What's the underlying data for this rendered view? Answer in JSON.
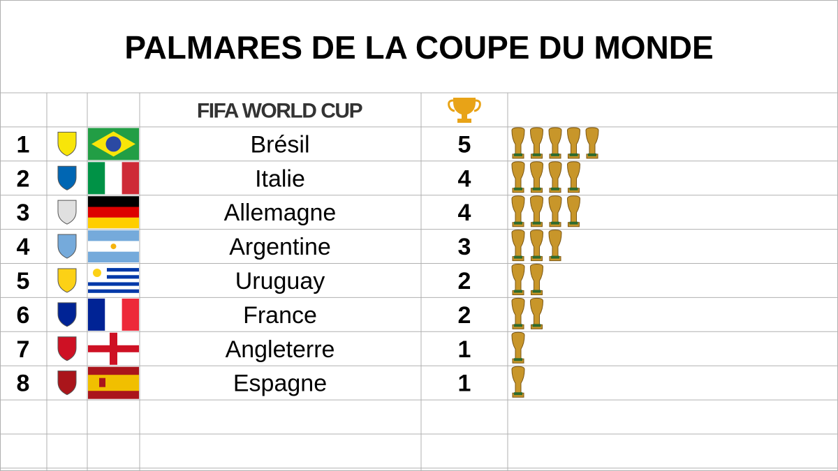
{
  "title": "PALMARES DE LA COUPE DU MONDE",
  "header": {
    "logo": "FIFA WORLD CUP"
  },
  "rows": [
    {
      "rank": 1,
      "country": "Brésil",
      "titles": 5
    },
    {
      "rank": 2,
      "country": "Italie",
      "titles": 4
    },
    {
      "rank": 3,
      "country": "Allemagne",
      "titles": 4
    },
    {
      "rank": 4,
      "country": "Argentine",
      "titles": 3
    },
    {
      "rank": 5,
      "country": "Uruguay",
      "titles": 2
    },
    {
      "rank": 6,
      "country": "France",
      "titles": 2
    },
    {
      "rank": 7,
      "country": "Angleterre",
      "titles": 1
    },
    {
      "rank": 8,
      "country": "Espagne",
      "titles": 1
    }
  ]
}
